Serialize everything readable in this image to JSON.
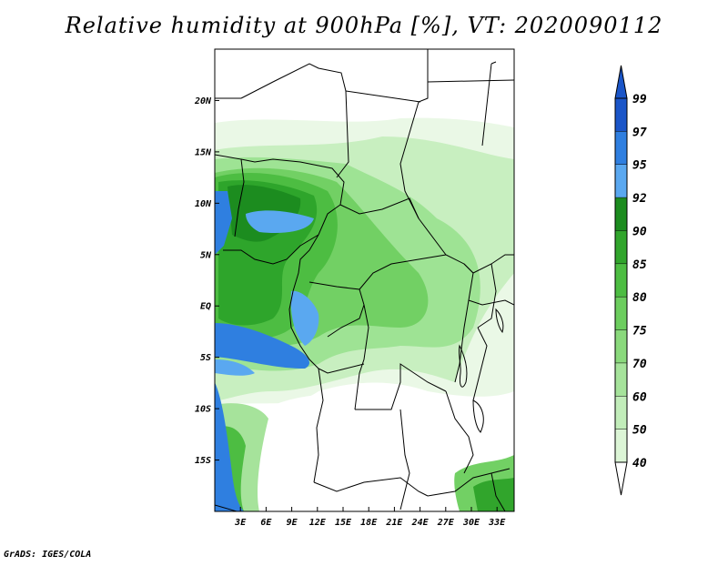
{
  "title": "Relative humidity at 900hPa [%], VT: 2020090112",
  "credit": "GrADS: IGES/COLA",
  "map": {
    "lat_range": [
      -20,
      25
    ],
    "lon_range": [
      0,
      35
    ],
    "lat_ticks": [
      {
        "v": 20,
        "label": "20N"
      },
      {
        "v": 15,
        "label": "15N"
      },
      {
        "v": 10,
        "label": "10N"
      },
      {
        "v": 5,
        "label": "5N"
      },
      {
        "v": 0,
        "label": "EQ"
      },
      {
        "v": -5,
        "label": "5S"
      },
      {
        "v": -10,
        "label": "10S"
      },
      {
        "v": -15,
        "label": "15S"
      }
    ],
    "lon_ticks": [
      {
        "v": 3,
        "label": "3E"
      },
      {
        "v": 6,
        "label": "6E"
      },
      {
        "v": 9,
        "label": "9E"
      },
      {
        "v": 12,
        "label": "12E"
      },
      {
        "v": 15,
        "label": "15E"
      },
      {
        "v": 18,
        "label": "18E"
      },
      {
        "v": 21,
        "label": "21E"
      },
      {
        "v": 24,
        "label": "24E"
      },
      {
        "v": 27,
        "label": "27E"
      },
      {
        "v": 30,
        "label": "30E"
      },
      {
        "v": 33,
        "label": "33E"
      }
    ]
  },
  "colorbar": {
    "levels": [
      "40",
      "50",
      "60",
      "70",
      "75",
      "80",
      "85",
      "90",
      "92",
      "95",
      "97",
      "99"
    ],
    "colors": [
      "#f0fbed",
      "#dcf5d6",
      "#c2edba",
      "#a6e39b",
      "#8ad97c",
      "#6ccd5e",
      "#4dbd42",
      "#31a52c",
      "#1c8c1f",
      "#5aa8f0",
      "#2f7fe0",
      "#1a55c8"
    ]
  }
}
